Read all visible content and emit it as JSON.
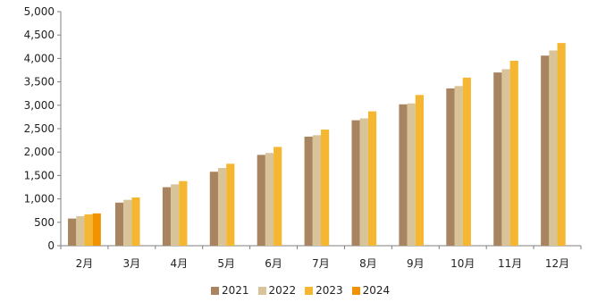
{
  "chart_data": {
    "type": "bar",
    "title": "",
    "xlabel": "",
    "ylabel": "",
    "ylim": [
      0,
      5000
    ],
    "yticks": [
      "0",
      "500",
      "1,000",
      "1,500",
      "2,000",
      "2,500",
      "3,000",
      "3,500",
      "4,000",
      "4,500",
      "5,000"
    ],
    "categories": [
      "2月",
      "3月",
      "4月",
      "5月",
      "6月",
      "7月",
      "8月",
      "9月",
      "10月",
      "11月",
      "12月"
    ],
    "grid": false,
    "legend_position": "bottom",
    "series": [
      {
        "name": "2021",
        "color": "#A88460",
        "values": [
          580,
          920,
          1250,
          1580,
          1940,
          2330,
          2680,
          3020,
          3360,
          3700,
          4060
        ]
      },
      {
        "name": "2022",
        "color": "#D9C399",
        "values": [
          630,
          980,
          1310,
          1660,
          1980,
          2360,
          2720,
          3040,
          3410,
          3770,
          4170
        ]
      },
      {
        "name": "2023",
        "color": "#F5B731",
        "values": [
          670,
          1030,
          1380,
          1750,
          2110,
          2480,
          2870,
          3220,
          3590,
          3950,
          4330
        ]
      },
      {
        "name": "2024",
        "color": "#F39200",
        "values": [
          690,
          null,
          null,
          null,
          null,
          null,
          null,
          null,
          null,
          null,
          null
        ]
      }
    ]
  }
}
